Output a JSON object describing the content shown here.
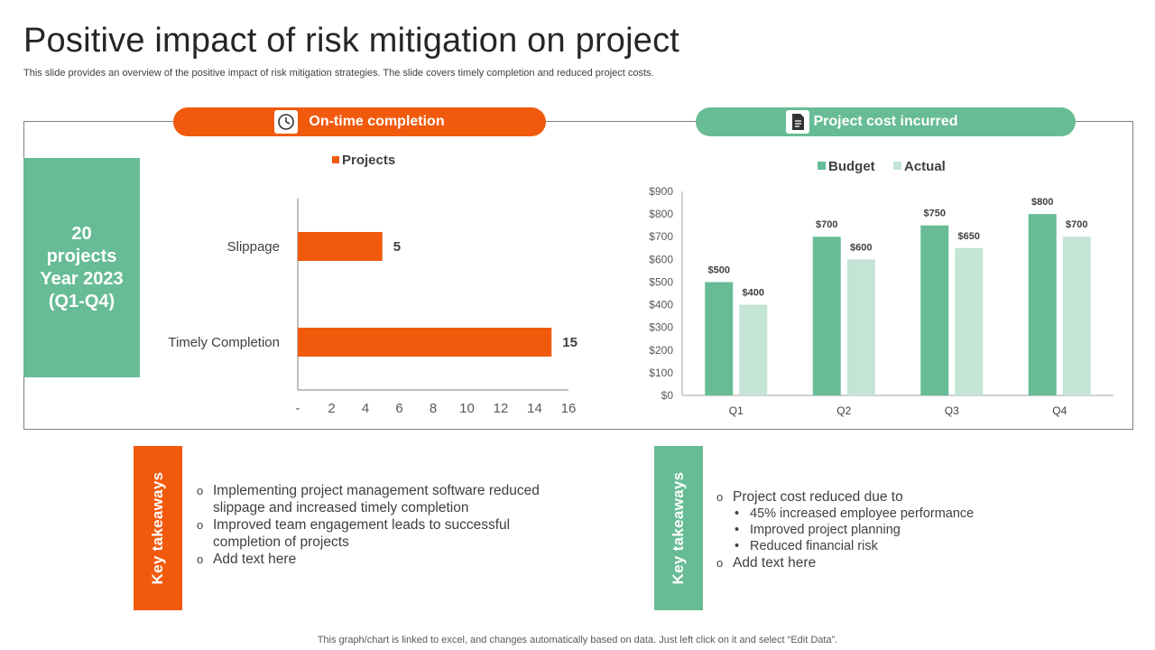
{
  "title": "Positive impact of risk mitigation on project",
  "subtitle": "This slide provides an overview of the positive impact of risk mitigation strategies. The slide covers timely completion and reduced project costs.",
  "left_section": {
    "header": "On-time completion",
    "icon": "clock-icon",
    "summary_lines": [
      "20",
      "projects",
      "Year 2023",
      "(Q1-Q4)"
    ]
  },
  "right_section": {
    "header": "Project cost incurred",
    "icon": "document-icon"
  },
  "chart_data": [
    {
      "type": "bar",
      "orientation": "horizontal",
      "legend": "Projects",
      "categories": [
        "Slippage",
        "Timely Completion"
      ],
      "values": [
        5,
        15
      ],
      "data_labels": [
        "5",
        "15"
      ],
      "xlim": [
        0,
        16
      ],
      "x_ticks": [
        "-",
        "2",
        "4",
        "6",
        "8",
        "10",
        "12",
        "14",
        "16"
      ],
      "color": "#f15a0d"
    },
    {
      "type": "bar",
      "categories": [
        "Q1",
        "Q2",
        "Q3",
        "Q4"
      ],
      "series": [
        {
          "name": "Budget",
          "values": [
            500,
            700,
            750,
            800
          ],
          "labels": [
            "$500",
            "$700",
            "$750",
            "$800"
          ],
          "color": "#67bc95"
        },
        {
          "name": "Actual",
          "values": [
            400,
            600,
            650,
            700
          ],
          "labels": [
            "$400",
            "$600",
            "$650",
            "$700"
          ],
          "color": "#c4e5d5"
        }
      ],
      "ylim": [
        0,
        900
      ],
      "y_ticks": [
        "$0",
        "$100",
        "$200",
        "$300",
        "$400",
        "$500",
        "$600",
        "$700",
        "$800",
        "$900"
      ],
      "legend_position": "top"
    }
  ],
  "takeaways_left": {
    "label": "Key takeaways",
    "items": [
      "Implementing project management software reduced slippage and increased timely completion",
      "Improved team engagement leads to successful completion of projects",
      "Add text here"
    ]
  },
  "takeaways_right": {
    "label": "Key takeaways",
    "intro": "Project cost reduced due to",
    "subitems": [
      "45% increased employee performance",
      "Improved project planning",
      "Reduced financial risk"
    ],
    "last": "Add text here"
  },
  "footer": "This graph/chart is linked to excel,  and changes automatically based on data. Just left click on it and select “Edit Data”."
}
